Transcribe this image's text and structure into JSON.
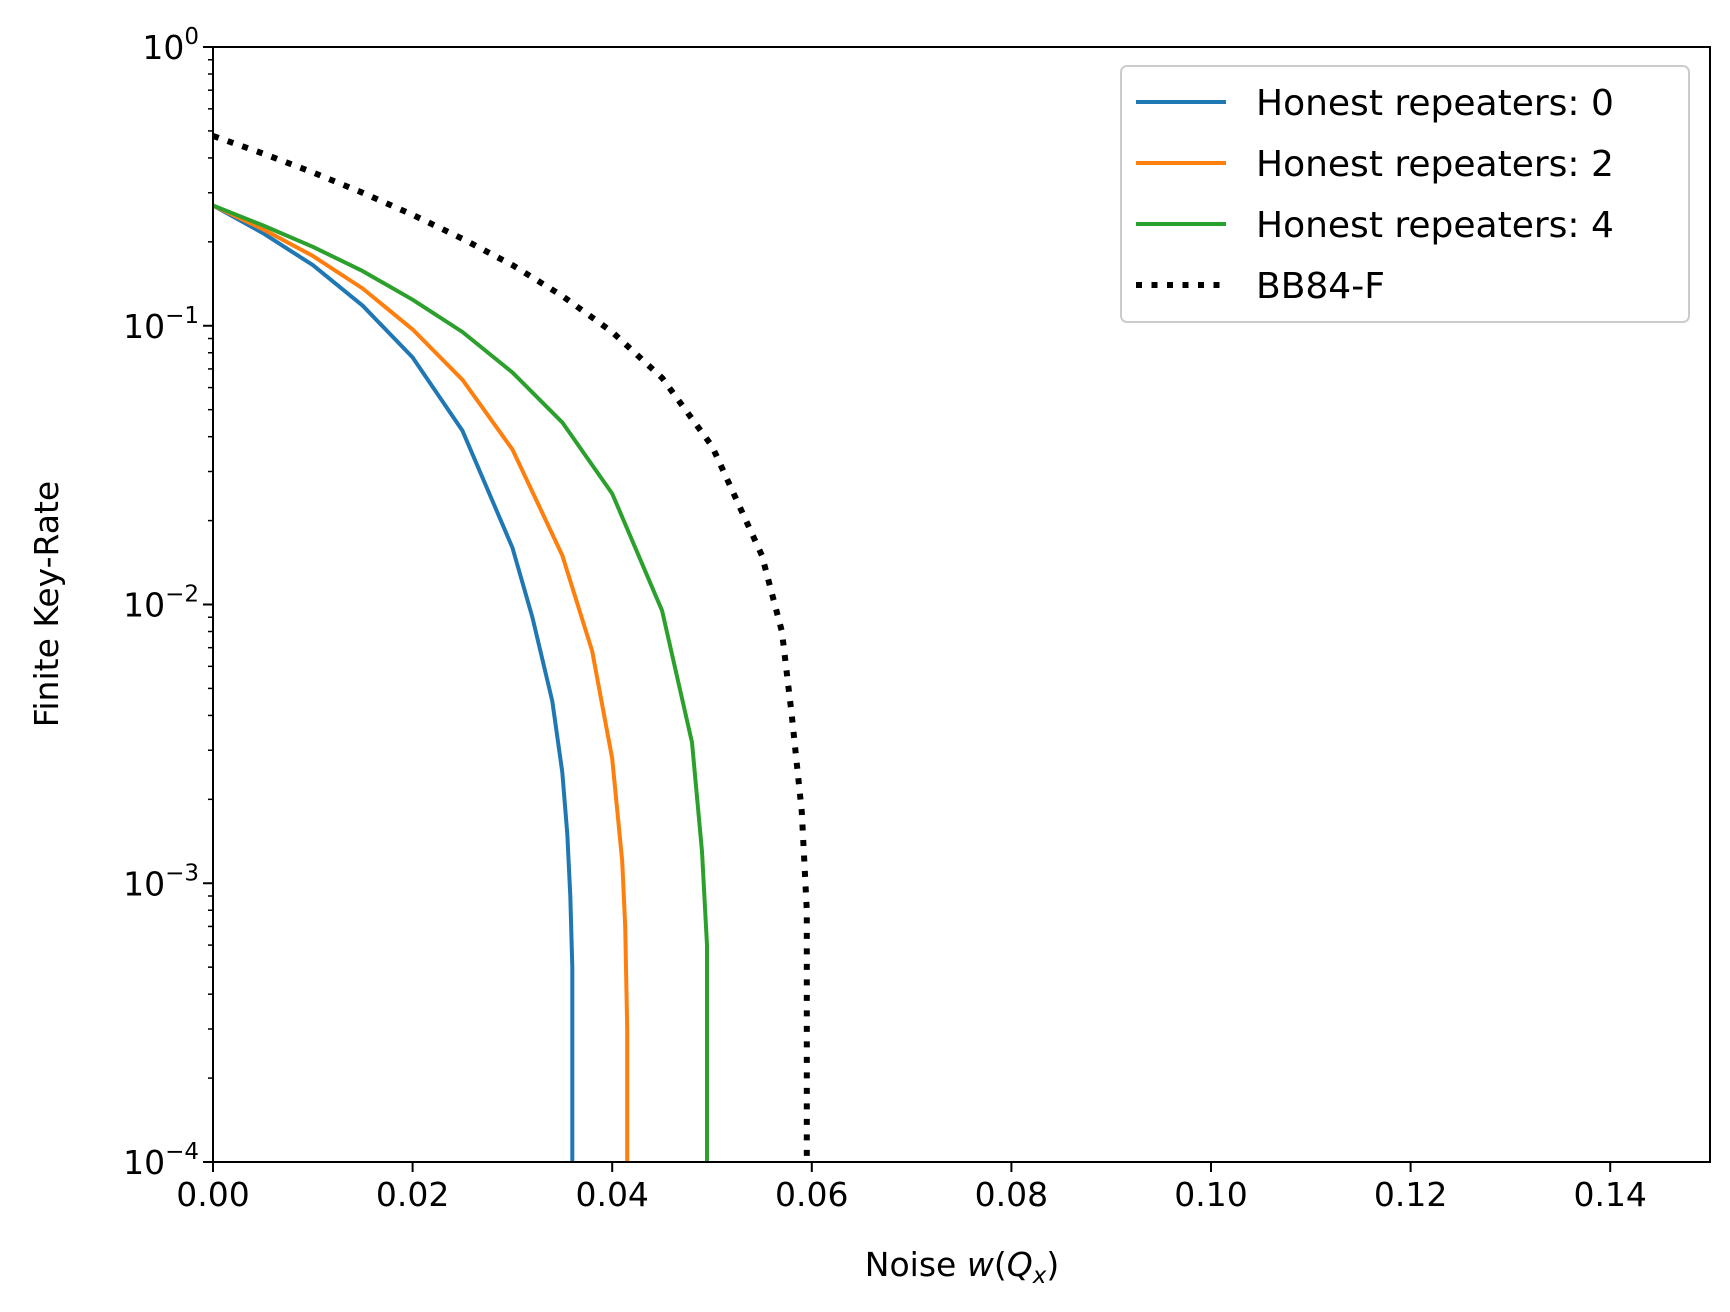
{
  "chart_data": {
    "type": "line",
    "yscale": "log",
    "xlabel": "Noise",
    "xlabel_math": "w(Q_x)",
    "ylabel": "Finite Key-Rate",
    "xlim": [
      0.0,
      0.15
    ],
    "ylim": [
      0.0001,
      1
    ],
    "grid": false,
    "legend_position": "top-right",
    "x_ticks": [
      {
        "value": 0.0,
        "label": "0.00"
      },
      {
        "value": 0.02,
        "label": "0.02"
      },
      {
        "value": 0.04,
        "label": "0.04"
      },
      {
        "value": 0.06,
        "label": "0.06"
      },
      {
        "value": 0.08,
        "label": "0.08"
      },
      {
        "value": 0.1,
        "label": "0.10"
      },
      {
        "value": 0.12,
        "label": "0.12"
      },
      {
        "value": 0.14,
        "label": "0.14"
      }
    ],
    "y_ticks": [
      {
        "value": 1,
        "base": "10",
        "exp": "0"
      },
      {
        "value": 0.1,
        "base": "10",
        "exp": "−1"
      },
      {
        "value": 0.01,
        "base": "10",
        "exp": "−2"
      },
      {
        "value": 0.001,
        "base": "10",
        "exp": "−3"
      },
      {
        "value": 0.0001,
        "base": "10",
        "exp": "−4"
      }
    ],
    "series": [
      {
        "name": "Honest repeaters: 0",
        "color": "#1f77b4",
        "style": "solid",
        "x": [
          0.0,
          0.005,
          0.01,
          0.015,
          0.02,
          0.025,
          0.03,
          0.032,
          0.034,
          0.035,
          0.0355,
          0.0358,
          0.036,
          0.036
        ],
        "y": [
          0.27,
          0.215,
          0.165,
          0.118,
          0.077,
          0.042,
          0.016,
          0.009,
          0.0045,
          0.0025,
          0.0015,
          0.0009,
          0.0005,
          0.0001
        ]
      },
      {
        "name": "Honest repeaters: 2",
        "color": "#ff7f0e",
        "style": "solid",
        "x": [
          0.0,
          0.005,
          0.01,
          0.015,
          0.02,
          0.025,
          0.03,
          0.035,
          0.038,
          0.04,
          0.041,
          0.0413,
          0.0415,
          0.0415
        ],
        "y": [
          0.27,
          0.222,
          0.178,
          0.136,
          0.097,
          0.064,
          0.036,
          0.015,
          0.0068,
          0.0028,
          0.0012,
          0.0007,
          0.0003,
          0.0001
        ]
      },
      {
        "name": "Honest repeaters: 4",
        "color": "#2ca02c",
        "style": "solid",
        "x": [
          0.0,
          0.005,
          0.01,
          0.015,
          0.02,
          0.025,
          0.03,
          0.035,
          0.04,
          0.045,
          0.048,
          0.049,
          0.0495,
          0.0495
        ],
        "y": [
          0.27,
          0.229,
          0.192,
          0.157,
          0.124,
          0.095,
          0.068,
          0.045,
          0.025,
          0.0095,
          0.0032,
          0.0013,
          0.0006,
          0.0001
        ]
      },
      {
        "name": "BB84-F",
        "color": "#000000",
        "style": "dotted",
        "x": [
          0.0,
          0.005,
          0.01,
          0.015,
          0.02,
          0.025,
          0.03,
          0.035,
          0.04,
          0.045,
          0.05,
          0.055,
          0.057,
          0.058,
          0.059,
          0.0595,
          0.0595
        ],
        "y": [
          0.48,
          0.415,
          0.355,
          0.3,
          0.25,
          0.205,
          0.165,
          0.128,
          0.095,
          0.065,
          0.037,
          0.015,
          0.008,
          0.004,
          0.0018,
          0.0008,
          0.0001
        ]
      }
    ]
  }
}
